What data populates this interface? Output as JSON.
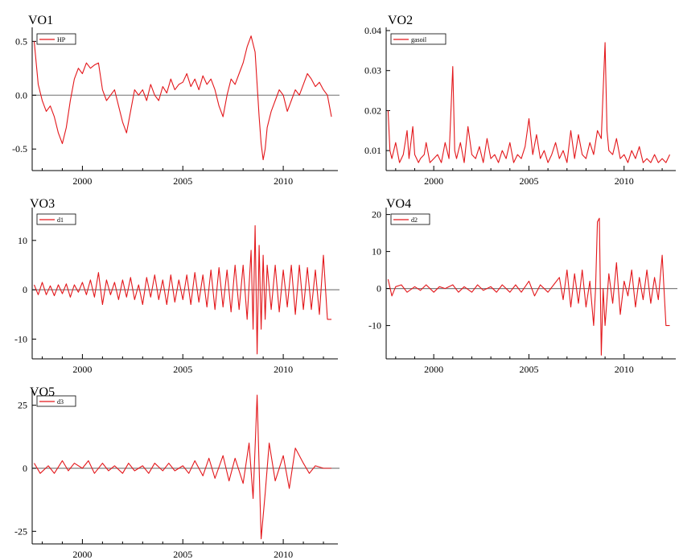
{
  "chart_data": [
    {
      "type": "line",
      "title": "VO1",
      "legend": "HP",
      "x_range": [
        1997.5,
        2012.8
      ],
      "ylim": [
        -0.7,
        0.6
      ],
      "y_ticks": [
        0.5,
        0.0,
        -0.5
      ],
      "y_tick_labels": [
        "0.5",
        "0.0",
        "-0.5"
      ],
      "x_ticks": [
        2000,
        2005,
        2010
      ],
      "x_tick_labels": [
        "2000",
        "2005",
        "2010"
      ],
      "reference_line": 0,
      "series": [
        {
          "x": [
            1997.6,
            1997.8,
            1998.0,
            1998.2,
            1998.4,
            1998.6,
            1998.8,
            1999.0,
            1999.2,
            1999.4,
            1999.6,
            1999.8,
            2000.0,
            2000.2,
            2000.4,
            2000.6,
            2000.8,
            2001.0,
            2001.2,
            2001.4,
            2001.6,
            2001.8,
            2002.0,
            2002.2,
            2002.4,
            2002.6,
            2002.8,
            2003.0,
            2003.2,
            2003.4,
            2003.6,
            2003.8,
            2004.0,
            2004.2,
            2004.4,
            2004.6,
            2004.8,
            2005.0,
            2005.2,
            2005.4,
            2005.6,
            2005.8,
            2006.0,
            2006.2,
            2006.4,
            2006.6,
            2006.8,
            2007.0,
            2007.2,
            2007.4,
            2007.6,
            2007.8,
            2008.0,
            2008.2,
            2008.4,
            2008.6,
            2008.7,
            2008.8,
            2008.9,
            2009.0,
            2009.1,
            2009.2,
            2009.4,
            2009.6,
            2009.8,
            2010.0,
            2010.2,
            2010.4,
            2010.6,
            2010.8,
            2011.0,
            2011.2,
            2011.4,
            2011.6,
            2011.8,
            2012.0,
            2012.2,
            2012.4
          ],
          "y": [
            0.5,
            0.1,
            -0.05,
            -0.15,
            -0.1,
            -0.2,
            -0.35,
            -0.45,
            -0.3,
            -0.05,
            0.15,
            0.25,
            0.2,
            0.3,
            0.25,
            0.28,
            0.3,
            0.05,
            -0.05,
            0.0,
            0.05,
            -0.1,
            -0.25,
            -0.35,
            -0.15,
            0.05,
            0.0,
            0.05,
            -0.05,
            0.1,
            0.0,
            -0.05,
            0.08,
            0.02,
            0.15,
            0.05,
            0.1,
            0.12,
            0.2,
            0.08,
            0.15,
            0.05,
            0.18,
            0.1,
            0.15,
            0.05,
            -0.1,
            -0.2,
            0.0,
            0.15,
            0.1,
            0.2,
            0.3,
            0.45,
            0.55,
            0.4,
            0.1,
            -0.2,
            -0.45,
            -0.6,
            -0.5,
            -0.3,
            -0.15,
            -0.05,
            0.05,
            0.0,
            -0.15,
            -0.05,
            0.05,
            0.0,
            0.1,
            0.2,
            0.15,
            0.08,
            0.12,
            0.05,
            0.0,
            -0.2
          ]
        }
      ]
    },
    {
      "type": "line",
      "title": "VO2",
      "legend": "gasoil",
      "x_range": [
        1997.5,
        2012.8
      ],
      "ylim": [
        0.005,
        0.04
      ],
      "y_ticks": [
        0.04,
        0.03,
        0.02,
        0.01
      ],
      "y_tick_labels": [
        "0.04",
        "0.03",
        "0.02",
        "0.01"
      ],
      "x_ticks": [
        2000,
        2005,
        2010
      ],
      "x_tick_labels": [
        "2000",
        "2005",
        "2010"
      ],
      "reference_line": null,
      "series": [
        {
          "x": [
            1997.6,
            1997.7,
            1997.8,
            1998.0,
            1998.2,
            1998.4,
            1998.6,
            1998.7,
            1998.9,
            1999.0,
            1999.2,
            1999.3,
            1999.5,
            1999.6,
            1999.8,
            2000.0,
            2000.2,
            2000.4,
            2000.6,
            2000.8,
            2001.0,
            2001.1,
            2001.2,
            2001.4,
            2001.6,
            2001.8,
            2002.0,
            2002.2,
            2002.4,
            2002.6,
            2002.8,
            2003.0,
            2003.2,
            2003.4,
            2003.6,
            2003.8,
            2004.0,
            2004.2,
            2004.4,
            2004.6,
            2004.8,
            2005.0,
            2005.2,
            2005.4,
            2005.6,
            2005.8,
            2006.0,
            2006.2,
            2006.4,
            2006.6,
            2006.8,
            2007.0,
            2007.2,
            2007.4,
            2007.6,
            2007.8,
            2008.0,
            2008.2,
            2008.4,
            2008.6,
            2008.8,
            2008.9,
            2009.0,
            2009.1,
            2009.2,
            2009.4,
            2009.6,
            2009.8,
            2010.0,
            2010.2,
            2010.4,
            2010.6,
            2010.8,
            2011.0,
            2011.2,
            2011.4,
            2011.6,
            2011.8,
            2012.0,
            2012.2,
            2012.4
          ],
          "y": [
            0.02,
            0.01,
            0.008,
            0.012,
            0.007,
            0.009,
            0.015,
            0.008,
            0.016,
            0.009,
            0.007,
            0.008,
            0.009,
            0.012,
            0.007,
            0.008,
            0.009,
            0.007,
            0.012,
            0.008,
            0.031,
            0.01,
            0.008,
            0.012,
            0.007,
            0.016,
            0.009,
            0.008,
            0.011,
            0.007,
            0.013,
            0.008,
            0.009,
            0.007,
            0.01,
            0.008,
            0.012,
            0.007,
            0.009,
            0.008,
            0.011,
            0.018,
            0.009,
            0.014,
            0.008,
            0.01,
            0.007,
            0.009,
            0.012,
            0.008,
            0.01,
            0.007,
            0.015,
            0.008,
            0.014,
            0.009,
            0.008,
            0.012,
            0.009,
            0.015,
            0.013,
            0.025,
            0.037,
            0.015,
            0.01,
            0.009,
            0.013,
            0.008,
            0.009,
            0.007,
            0.01,
            0.008,
            0.011,
            0.007,
            0.008,
            0.007,
            0.009,
            0.007,
            0.008,
            0.007,
            0.009
          ]
        }
      ]
    },
    {
      "type": "line",
      "title": "VO3",
      "legend": "d1",
      "x_range": [
        1997.5,
        2012.8
      ],
      "ylim": [
        -14,
        16
      ],
      "y_ticks": [
        10,
        0,
        -10
      ],
      "y_tick_labels": [
        "10",
        "0",
        "-10"
      ],
      "x_ticks": [
        2000,
        2005,
        2010
      ],
      "x_tick_labels": [
        "2000",
        "2005",
        "2010"
      ],
      "reference_line": 0,
      "series": [
        {
          "x": [
            1997.6,
            1997.8,
            1998.0,
            1998.2,
            1998.4,
            1998.6,
            1998.8,
            1999.0,
            1999.2,
            1999.4,
            1999.6,
            1999.8,
            2000.0,
            2000.2,
            2000.4,
            2000.6,
            2000.8,
            2001.0,
            2001.2,
            2001.4,
            2001.6,
            2001.8,
            2002.0,
            2002.2,
            2002.4,
            2002.6,
            2002.8,
            2003.0,
            2003.2,
            2003.4,
            2003.6,
            2003.8,
            2004.0,
            2004.2,
            2004.4,
            2004.6,
            2004.8,
            2005.0,
            2005.2,
            2005.4,
            2005.6,
            2005.8,
            2006.0,
            2006.2,
            2006.4,
            2006.6,
            2006.8,
            2007.0,
            2007.2,
            2007.4,
            2007.6,
            2007.8,
            2008.0,
            2008.2,
            2008.4,
            2008.5,
            2008.6,
            2008.7,
            2008.8,
            2008.9,
            2009.0,
            2009.1,
            2009.2,
            2009.4,
            2009.6,
            2009.8,
            2010.0,
            2010.2,
            2010.4,
            2010.6,
            2010.8,
            2011.0,
            2011.2,
            2011.4,
            2011.6,
            2011.8,
            2012.0,
            2012.2,
            2012.4
          ],
          "y": [
            1,
            -1,
            1.5,
            -1,
            0.8,
            -1.2,
            1,
            -0.8,
            1.2,
            -1.5,
            1,
            -0.5,
            1.5,
            -1,
            2,
            -1.5,
            3.5,
            -3,
            2,
            -1,
            1.5,
            -2,
            2,
            -1.5,
            2.5,
            -2,
            1,
            -3,
            2.5,
            -1.5,
            3,
            -2,
            2,
            -3,
            3,
            -2.5,
            2,
            -2,
            3,
            -3,
            3.5,
            -2.5,
            3,
            -3.5,
            4,
            -4,
            4.5,
            -3.5,
            4,
            -4.5,
            5,
            -4,
            5,
            -6,
            8,
            -8,
            13,
            -13,
            9,
            -8,
            7,
            -6,
            5,
            -4,
            5,
            -4.5,
            4,
            -3.5,
            5,
            -5,
            5,
            -4,
            4.5,
            -4,
            4,
            -5,
            7,
            -6,
            -6
          ]
        }
      ]
    },
    {
      "type": "line",
      "title": "VO4",
      "legend": "d2",
      "x_range": [
        1997.5,
        2012.8
      ],
      "ylim": [
        -19,
        21
      ],
      "y_ticks": [
        20,
        10,
        0,
        -10
      ],
      "y_tick_labels": [
        "20",
        "10",
        "0",
        "-10"
      ],
      "x_ticks": [
        2000,
        2005,
        2010
      ],
      "x_tick_labels": [
        "2000",
        "2005",
        "2010"
      ],
      "reference_line": 0,
      "series": [
        {
          "x": [
            1997.6,
            1997.8,
            1998.0,
            1998.3,
            1998.6,
            1999.0,
            1999.3,
            1999.6,
            2000.0,
            2000.3,
            2000.6,
            2001.0,
            2001.3,
            2001.6,
            2002.0,
            2002.3,
            2002.6,
            2003.0,
            2003.3,
            2003.6,
            2004.0,
            2004.3,
            2004.6,
            2005.0,
            2005.3,
            2005.6,
            2006.0,
            2006.3,
            2006.6,
            2006.8,
            2007.0,
            2007.2,
            2007.4,
            2007.6,
            2007.8,
            2008.0,
            2008.2,
            2008.4,
            2008.5,
            2008.6,
            2008.7,
            2008.8,
            2008.9,
            2009.0,
            2009.2,
            2009.4,
            2009.6,
            2009.8,
            2010.0,
            2010.2,
            2010.4,
            2010.6,
            2010.8,
            2011.0,
            2011.2,
            2011.4,
            2011.6,
            2011.8,
            2012.0,
            2012.2,
            2012.4
          ],
          "y": [
            2.5,
            -2,
            0.5,
            1,
            -1,
            0.5,
            -0.5,
            1,
            -1,
            0.5,
            0,
            1,
            -1,
            0.5,
            -1,
            1,
            -0.5,
            0.5,
            -1,
            1,
            -1,
            1,
            -1,
            2,
            -2,
            1,
            -1,
            1,
            3,
            -3,
            5,
            -5,
            4,
            -4,
            5,
            -5,
            2,
            -10,
            0,
            18,
            19,
            -18,
            0,
            -10,
            4,
            -4,
            7,
            -7,
            2,
            -2,
            5,
            -5,
            3,
            -3,
            5,
            -4,
            3,
            -3,
            9,
            -10,
            -10
          ]
        }
      ]
    },
    {
      "type": "line",
      "title": "VO5",
      "legend": "d3",
      "x_range": [
        1997.5,
        2012.8
      ],
      "ylim": [
        -30,
        30
      ],
      "y_ticks": [
        25,
        0,
        -25
      ],
      "y_tick_labels": [
        "25",
        "0",
        "-25"
      ],
      "x_ticks": [
        2000,
        2005,
        2010
      ],
      "x_tick_labels": [
        "2000",
        "2005",
        "2010"
      ],
      "reference_line": 0,
      "series": [
        {
          "x": [
            1997.6,
            1997.9,
            1998.3,
            1998.6,
            1999.0,
            1999.3,
            1999.6,
            2000.0,
            2000.3,
            2000.6,
            2001.0,
            2001.3,
            2001.6,
            2002.0,
            2002.3,
            2002.6,
            2003.0,
            2003.3,
            2003.6,
            2004.0,
            2004.3,
            2004.6,
            2005.0,
            2005.3,
            2005.6,
            2006.0,
            2006.3,
            2006.6,
            2007.0,
            2007.3,
            2007.6,
            2008.0,
            2008.3,
            2008.5,
            2008.7,
            2008.9,
            2009.1,
            2009.3,
            2009.6,
            2010.0,
            2010.3,
            2010.6,
            2011.0,
            2011.3,
            2011.6,
            2012.0,
            2012.4
          ],
          "y": [
            2,
            -2,
            1,
            -2,
            3,
            -1,
            2,
            0,
            3,
            -2,
            2,
            -1,
            1,
            -2,
            2,
            -1,
            1,
            -2,
            2,
            -1,
            2,
            -1,
            1,
            -2,
            3,
            -3,
            4,
            -4,
            5,
            -5,
            4,
            -6,
            10,
            -12,
            29,
            -28,
            -10,
            10,
            -5,
            5,
            -8,
            8,
            2,
            -2,
            1,
            0,
            0
          ]
        }
      ]
    }
  ]
}
